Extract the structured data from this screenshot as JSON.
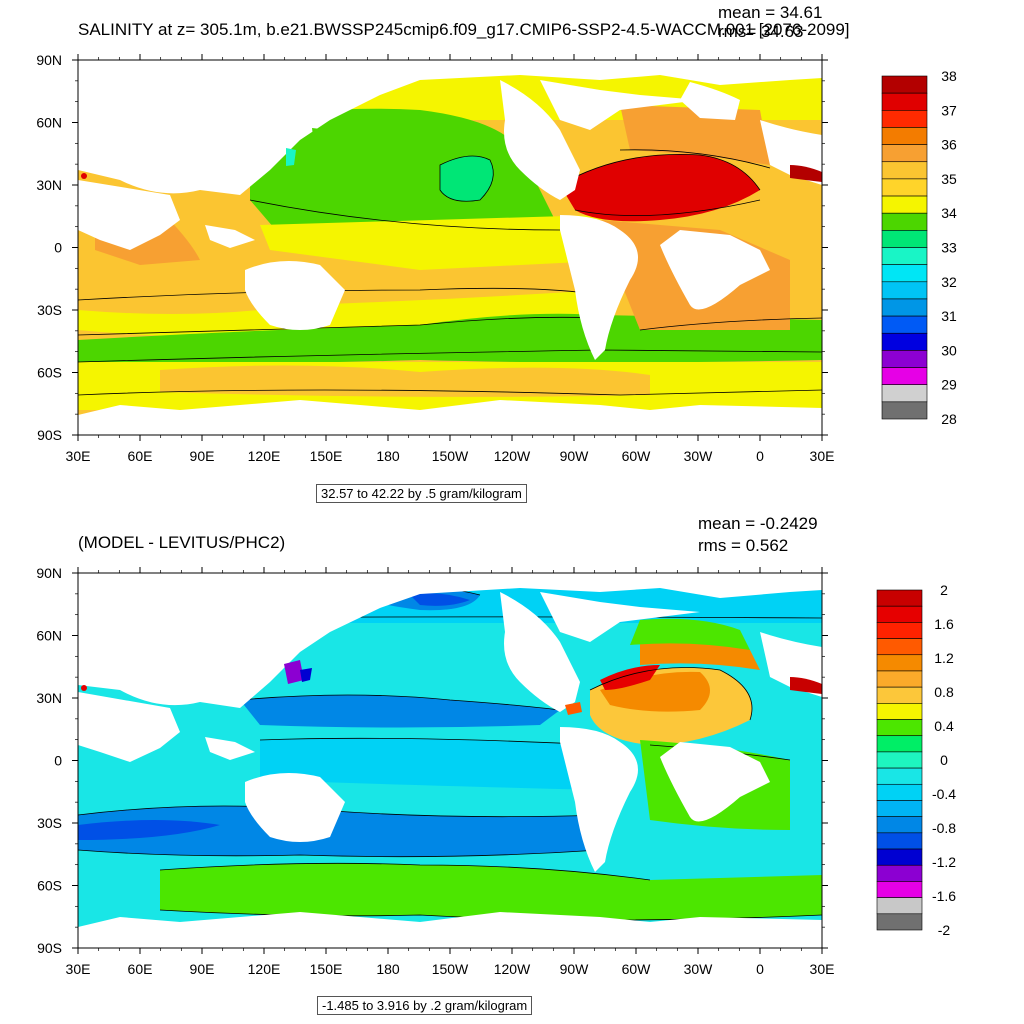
{
  "top": {
    "title": "SALINITY at z= 305.1m, b.e21.BWSSP245cmip6.f09_g17.CMIP6-SSP2-4.5-WACCM.001 [2076-2099]",
    "mean": "mean = 34.61",
    "rms": "rms= 34.63",
    "info": "32.57 to 42.22 by .5 gram/kilogram",
    "colorbar_labels": [
      "38",
      "37",
      "36",
      "35",
      "34",
      "33",
      "32",
      "31",
      "30",
      "29",
      "28"
    ],
    "colorbar_colors": [
      "#b30000",
      "#e00000",
      "#ff2a00",
      "#f37c00",
      "#f7a032",
      "#fbc531",
      "#ffd42a",
      "#f5f500",
      "#4cd600",
      "#00e676",
      "#19f5c6",
      "#00e6f5",
      "#00c4f5",
      "#0096e6",
      "#005af5",
      "#0000e0",
      "#8c00d2",
      "#e600e6",
      "#d0d0d0",
      "#707070"
    ]
  },
  "bottom": {
    "title": "(MODEL - LEVITUS/PHC2)",
    "mean": "mean = -0.2429",
    "rms": "rms = 0.562",
    "info": "-1.485 to 3.916 by .2 gram/kilogram",
    "colorbar_labels": [
      "2",
      "1.6",
      "1.2",
      "0.8",
      "0.4",
      "0",
      "-0.4",
      "-0.8",
      "-1.2",
      "-1.6",
      "-2"
    ],
    "colorbar_colors": [
      "#c80000",
      "#e60000",
      "#ff2200",
      "#ff5a00",
      "#f58a00",
      "#fbaa2a",
      "#fcc73a",
      "#f5f500",
      "#4ce600",
      "#00ee66",
      "#1ef5c0",
      "#19e6e6",
      "#00d2f5",
      "#00b4f5",
      "#0087e6",
      "#0050e6",
      "#0000d2",
      "#8c00d2",
      "#e600e6",
      "#c8c8c8",
      "#707070"
    ]
  },
  "x_ticks": [
    "30E",
    "60E",
    "90E",
    "120E",
    "150E",
    "180",
    "150W",
    "120W",
    "90W",
    "60W",
    "30W",
    "0",
    "30E"
  ],
  "y_ticks": [
    "90N",
    "60N",
    "30N",
    "0",
    "30S",
    "60S",
    "90S"
  ],
  "map_colors": {
    "top": {
      "polar_band": "#f5f500",
      "north_pacific": "#4cd600",
      "pacific_core": "#00e676",
      "mid_band": "#fbc531",
      "southern_green": "#4cd600",
      "atlantic_red": "#e00000",
      "atlantic_orange": "#f7a032",
      "arabian": "#f37c00",
      "land": "#ffffff"
    },
    "bottom": {
      "base": "#19e6e6",
      "deep": "#00d2f5",
      "blue": "#0087e6",
      "dark": "#0050e6",
      "green": "#4ce600",
      "orange": "#f58a00",
      "red": "#e60000",
      "purple": "#8c00d2",
      "land": "#ffffff"
    }
  }
}
